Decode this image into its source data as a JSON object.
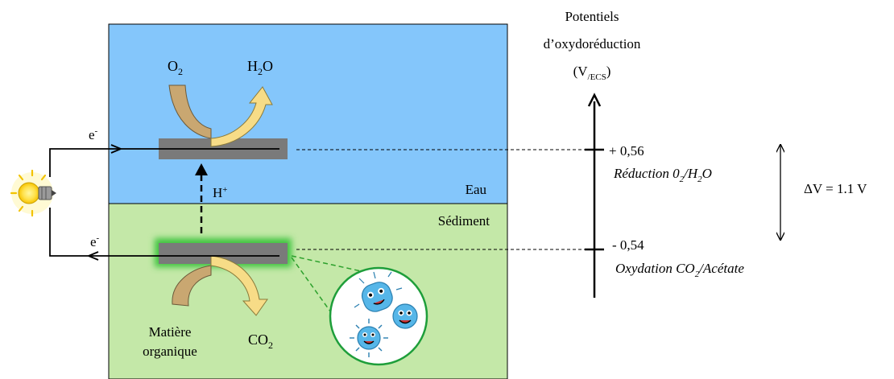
{
  "colors": {
    "water": "#84c6fb",
    "sediment": "#c4e8a8",
    "electrode": "#7a7a7a",
    "biofilm_glow": "#3fc43f",
    "arrow_in": "#c9a771",
    "arrow_out": "#f7dc87",
    "bacteria": "#56b6e8",
    "dashed_green": "#2ca02c"
  },
  "icons": {
    "lamp": "light-bulb-icon",
    "bacteria": "bacteria-icon"
  },
  "labels": {
    "water": "Eau",
    "sediment": "Sédiment",
    "proton": "H+",
    "electron_top": "e-",
    "electron_bottom": "e-"
  },
  "cathode": {
    "reactant": "O2",
    "product": "H2O"
  },
  "anode": {
    "reactant_line1": "Matière",
    "reactant_line2": "organique",
    "product": "CO2"
  },
  "scale": {
    "title_line1": "Potentiels",
    "title_line2": "d’oxydoréduction",
    "title_line3": "(V/ECS)",
    "top_value": "+ 0,56",
    "top_reaction": "Réduction 02/H2O",
    "bottom_value": "- 0,54",
    "bottom_reaction": "Oxydation CO2/Acétate",
    "delta": "ΔV = 1.1 V"
  }
}
